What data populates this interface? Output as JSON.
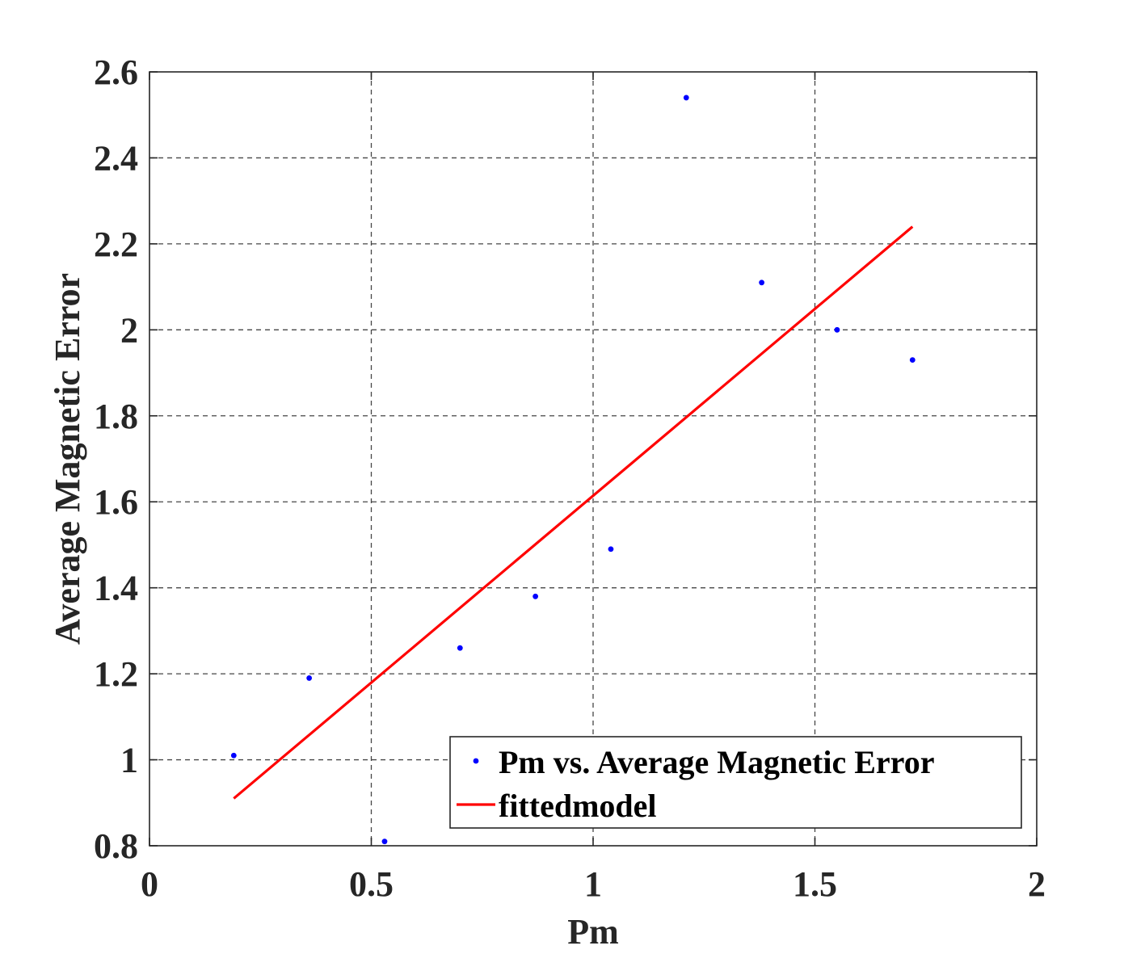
{
  "chart_data": {
    "type": "scatter",
    "xlabel": "Pm",
    "ylabel": "Average Magnetic Error",
    "xlim": [
      0,
      2
    ],
    "ylim": [
      0.8,
      2.6
    ],
    "xticks": [
      "0",
      "0.5",
      "1",
      "1.5",
      "2"
    ],
    "yticks": [
      "0.8",
      "1",
      "1.2",
      "1.4",
      "1.6",
      "1.8",
      "2",
      "2.2",
      "2.4",
      "2.6"
    ],
    "grid": true,
    "legend_position": "bottom-right",
    "series": [
      {
        "name": "Pm vs. Average Magnetic Error",
        "kind": "scatter",
        "color": "#0000ff",
        "x": [
          0.19,
          0.36,
          0.53,
          0.7,
          0.87,
          1.04,
          1.21,
          1.38,
          1.55,
          1.72
        ],
        "y": [
          1.01,
          1.19,
          0.81,
          1.26,
          1.38,
          1.49,
          2.54,
          2.11,
          2.0,
          1.93
        ]
      },
      {
        "name": "fittedmodel",
        "kind": "line",
        "color": "#ff0000",
        "x": [
          0.19,
          1.72
        ],
        "y": [
          0.91,
          2.24
        ]
      }
    ]
  }
}
